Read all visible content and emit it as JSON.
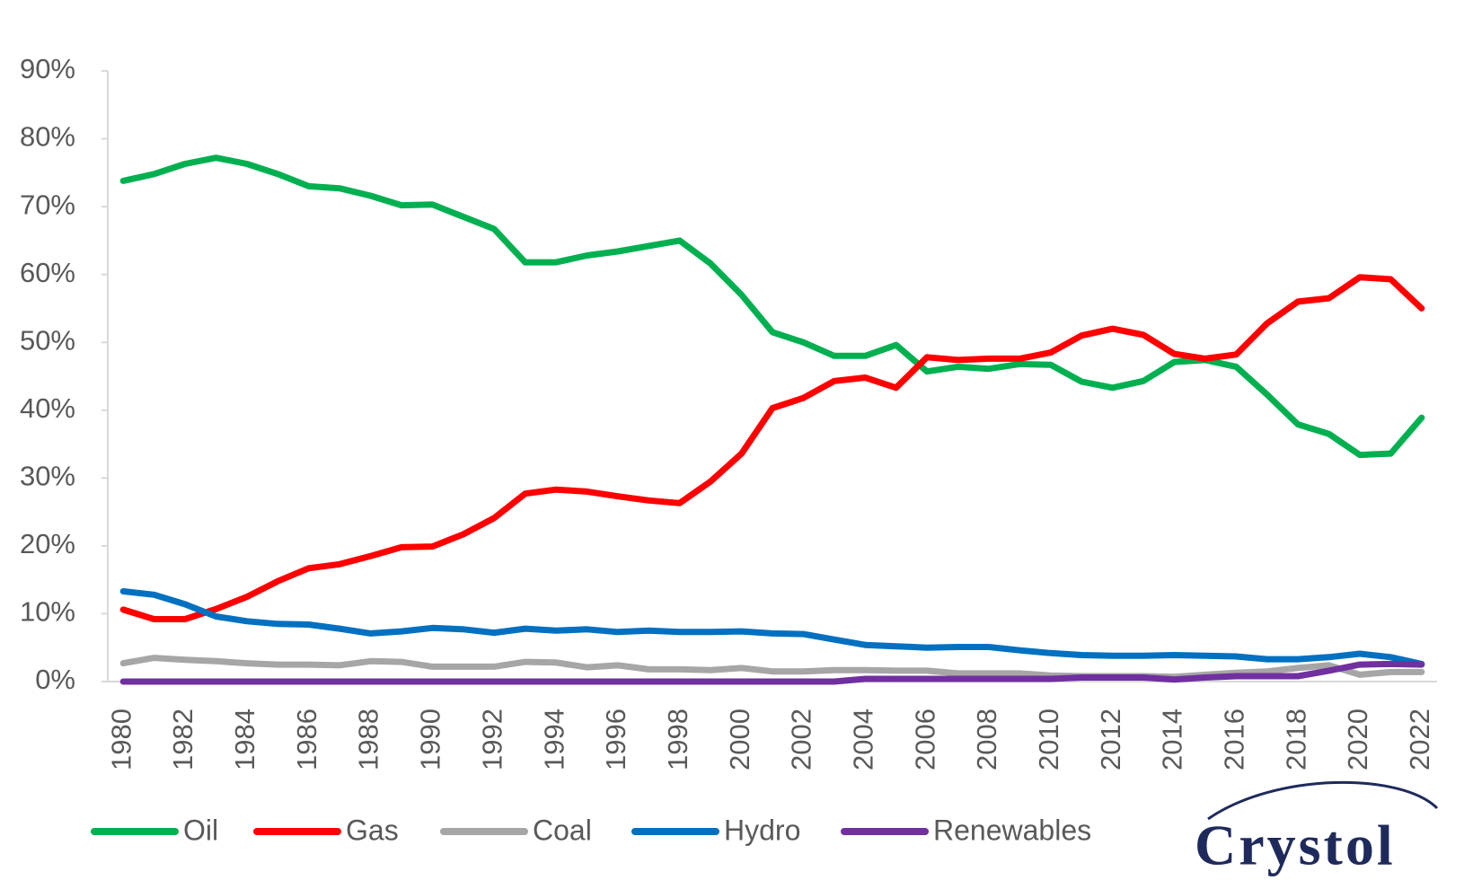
{
  "chart_data": {
    "type": "line",
    "x": [
      1980,
      1981,
      1982,
      1983,
      1984,
      1985,
      1986,
      1987,
      1988,
      1989,
      1990,
      1991,
      1992,
      1993,
      1994,
      1995,
      1996,
      1997,
      1998,
      1999,
      2000,
      2001,
      2002,
      2003,
      2004,
      2005,
      2006,
      2007,
      2008,
      2009,
      2010,
      2011,
      2012,
      2013,
      2014,
      2015,
      2016,
      2017,
      2018,
      2019,
      2020,
      2021,
      2022
    ],
    "xlim": [
      1979.5,
      2022.5
    ],
    "xticks": [
      1980,
      1982,
      1984,
      1986,
      1988,
      1990,
      1992,
      1994,
      1996,
      1998,
      2000,
      2002,
      2004,
      2006,
      2008,
      2010,
      2012,
      2014,
      2016,
      2018,
      2020,
      2022
    ],
    "ylim": [
      0,
      90
    ],
    "yticks": [
      {
        "value": 0,
        "label": "0%"
      },
      {
        "value": 10,
        "label": "10%"
      },
      {
        "value": 20,
        "label": "20%"
      },
      {
        "value": 30,
        "label": "30%"
      },
      {
        "value": 40,
        "label": "40%"
      },
      {
        "value": 50,
        "label": "50%"
      },
      {
        "value": 60,
        "label": "60%"
      },
      {
        "value": 70,
        "label": "70%"
      },
      {
        "value": 80,
        "label": "80%"
      },
      {
        "value": 90,
        "label": "90%"
      }
    ],
    "grid": false,
    "legend": "bottom",
    "series": [
      {
        "name": "Oil",
        "color": "#00b050",
        "values": [
          73.8,
          74.8,
          76.3,
          77.2,
          76.3,
          74.8,
          73.0,
          72.7,
          71.6,
          70.2,
          70.3,
          68.5,
          66.7,
          61.8,
          61.8,
          62.8,
          63.4,
          64.2,
          65.0,
          61.6,
          57.0,
          51.5,
          50.0,
          48.0,
          48.0,
          49.6,
          45.7,
          46.4,
          46.1,
          46.8,
          46.7,
          44.2,
          43.3,
          44.3,
          47.1,
          47.4,
          46.4,
          42.3,
          37.9,
          36.5,
          33.4,
          33.6,
          38.9
        ]
      },
      {
        "name": "Gas",
        "color": "#ff0000",
        "values": [
          10.6,
          9.2,
          9.2,
          10.7,
          12.5,
          14.8,
          16.7,
          17.3,
          18.5,
          19.8,
          19.9,
          21.7,
          24.1,
          27.7,
          28.3,
          28.0,
          27.3,
          26.7,
          26.3,
          29.5,
          33.6,
          40.3,
          41.8,
          44.3,
          44.8,
          43.3,
          47.8,
          47.4,
          47.6,
          47.6,
          48.5,
          51.0,
          52.0,
          51.1,
          48.3,
          47.6,
          48.2,
          52.8,
          56.0,
          56.5,
          59.6,
          59.3,
          55.0
        ]
      },
      {
        "name": "Coal",
        "color": "#a6a6a6",
        "values": [
          2.7,
          3.5,
          3.2,
          3.0,
          2.7,
          2.5,
          2.5,
          2.4,
          3.0,
          2.9,
          2.2,
          2.2,
          2.2,
          2.9,
          2.8,
          2.1,
          2.4,
          1.8,
          1.8,
          1.7,
          2.0,
          1.5,
          1.5,
          1.7,
          1.7,
          1.6,
          1.6,
          1.2,
          1.2,
          1.2,
          0.9,
          0.8,
          0.8,
          0.8,
          0.7,
          1.0,
          1.3,
          1.5,
          2.0,
          2.4,
          1.0,
          1.4,
          1.4
        ]
      },
      {
        "name": "Hydro",
        "color": "#0070c0",
        "values": [
          13.3,
          12.8,
          11.4,
          9.6,
          8.9,
          8.5,
          8.4,
          7.8,
          7.1,
          7.4,
          7.9,
          7.7,
          7.2,
          7.8,
          7.5,
          7.7,
          7.3,
          7.5,
          7.3,
          7.3,
          7.4,
          7.1,
          7.0,
          6.2,
          5.4,
          5.2,
          5.0,
          5.1,
          5.1,
          4.6,
          4.2,
          3.9,
          3.8,
          3.8,
          3.9,
          3.8,
          3.7,
          3.3,
          3.3,
          3.6,
          4.1,
          3.6,
          2.6
        ]
      },
      {
        "name": "Renewables",
        "color": "#7030a0",
        "values": [
          0,
          0,
          0,
          0,
          0,
          0,
          0,
          0,
          0,
          0,
          0,
          0,
          0,
          0,
          0,
          0,
          0,
          0,
          0,
          0,
          0,
          0,
          0,
          0,
          0.4,
          0.4,
          0.4,
          0.4,
          0.4,
          0.4,
          0.4,
          0.6,
          0.6,
          0.6,
          0.3,
          0.6,
          0.8,
          0.8,
          0.8,
          1.6,
          2.5,
          2.6,
          2.5
        ]
      }
    ],
    "logo": "Crystol"
  }
}
